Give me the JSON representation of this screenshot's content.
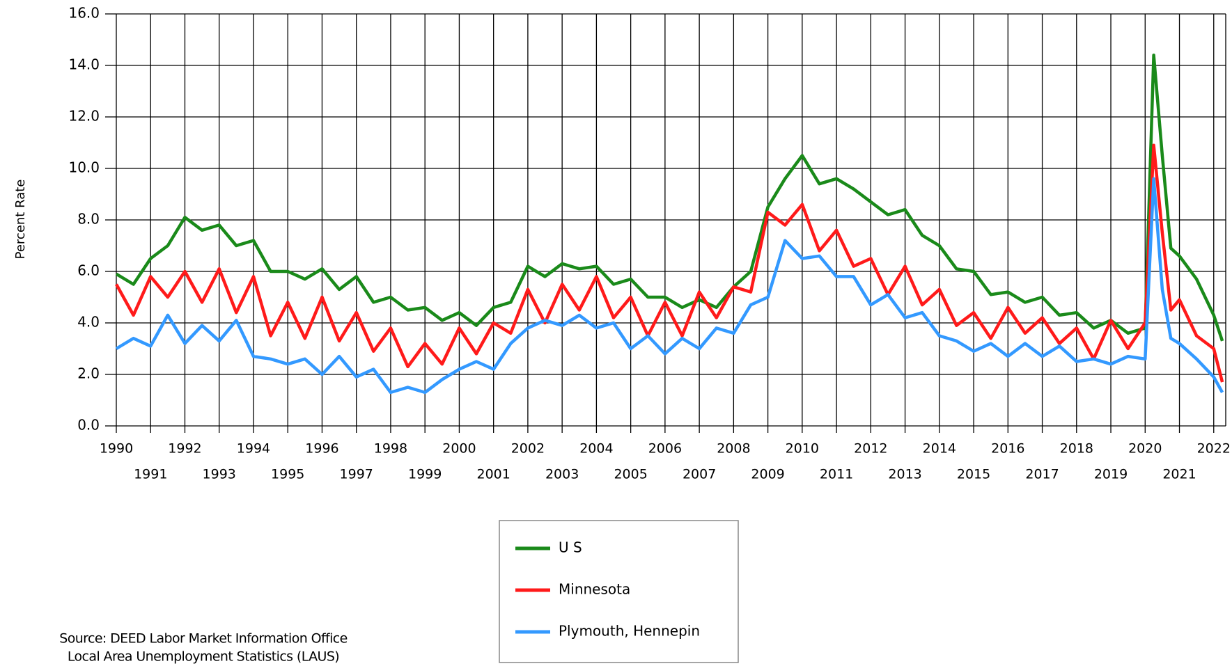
{
  "chart_data": {
    "type": "line",
    "y_label": "Percent Rate",
    "source": [
      "Source: DEED Labor Market Information Office",
      "Local Area Unemployment Statistics (LAUS)"
    ],
    "x": [
      1990,
      1990.5,
      1991,
      1991.5,
      1992,
      1992.5,
      1993,
      1993.5,
      1994,
      1994.5,
      1995,
      1995.5,
      1996,
      1996.5,
      1997,
      1997.5,
      1998,
      1998.5,
      1999,
      1999.5,
      2000,
      2000.5,
      2001,
      2001.5,
      2002,
      2002.5,
      2003,
      2003.5,
      2004,
      2004.5,
      2005,
      2005.5,
      2006,
      2006.5,
      2007,
      2007.5,
      2008,
      2008.5,
      2009,
      2009.5,
      2010,
      2010.5,
      2011,
      2011.5,
      2012,
      2012.5,
      2013,
      2013.5,
      2014,
      2014.5,
      2015,
      2015.5,
      2016,
      2016.5,
      2017,
      2017.5,
      2018,
      2018.5,
      2019,
      2019.5,
      2020,
      2020.25,
      2020.5,
      2020.75,
      2021,
      2021.5,
      2022,
      2022.25
    ],
    "series": [
      {
        "name": "U S",
        "color": "#1a8a1a",
        "values": [
          5.9,
          5.5,
          6.5,
          7.0,
          8.1,
          7.6,
          7.8,
          7.0,
          7.2,
          6.0,
          6.0,
          5.7,
          6.1,
          5.3,
          5.8,
          4.8,
          5.0,
          4.5,
          4.6,
          4.1,
          4.4,
          3.9,
          4.6,
          4.8,
          6.2,
          5.8,
          6.3,
          6.1,
          6.2,
          5.5,
          5.7,
          5.0,
          5.0,
          4.6,
          4.9,
          4.6,
          5.4,
          6.0,
          8.5,
          9.6,
          10.5,
          9.4,
          9.6,
          9.2,
          8.7,
          8.2,
          8.4,
          7.4,
          7.0,
          6.1,
          6.0,
          5.1,
          5.2,
          4.8,
          5.0,
          4.3,
          4.4,
          3.8,
          4.1,
          3.6,
          3.8,
          14.4,
          10.5,
          6.9,
          6.6,
          5.7,
          4.3,
          3.3
        ]
      },
      {
        "name": "Minnesota",
        "color": "#ff1a1a",
        "values": [
          5.5,
          4.3,
          5.8,
          5.0,
          6.0,
          4.8,
          6.1,
          4.4,
          5.8,
          3.5,
          4.8,
          3.4,
          5.0,
          3.3,
          4.4,
          2.9,
          3.8,
          2.3,
          3.2,
          2.4,
          3.8,
          2.8,
          4.0,
          3.6,
          5.3,
          4.0,
          5.5,
          4.5,
          5.8,
          4.2,
          5.0,
          3.5,
          4.8,
          3.5,
          5.2,
          4.2,
          5.4,
          5.2,
          8.3,
          7.8,
          8.6,
          6.8,
          7.6,
          6.2,
          6.5,
          5.1,
          6.2,
          4.7,
          5.3,
          3.9,
          4.4,
          3.4,
          4.6,
          3.6,
          4.2,
          3.2,
          3.8,
          2.6,
          4.1,
          3.0,
          4.0,
          10.9,
          7.5,
          4.5,
          4.9,
          3.5,
          3.0,
          1.7
        ]
      },
      {
        "name": "Plymouth, Hennepin",
        "color": "#3399ff",
        "values": [
          3.0,
          3.4,
          3.1,
          4.3,
          3.2,
          3.9,
          3.3,
          4.1,
          2.7,
          2.6,
          2.4,
          2.6,
          2.0,
          2.7,
          1.9,
          2.2,
          1.3,
          1.5,
          1.3,
          1.8,
          2.2,
          2.5,
          2.2,
          3.2,
          3.8,
          4.1,
          3.9,
          4.3,
          3.8,
          4.0,
          3.0,
          3.5,
          2.8,
          3.4,
          3.0,
          3.8,
          3.6,
          4.7,
          5.0,
          7.2,
          6.5,
          6.6,
          5.8,
          5.8,
          4.7,
          5.1,
          4.2,
          4.4,
          3.5,
          3.3,
          2.9,
          3.2,
          2.7,
          3.2,
          2.7,
          3.1,
          2.5,
          2.6,
          2.4,
          2.7,
          2.6,
          9.6,
          5.3,
          3.4,
          3.2,
          2.6,
          1.9,
          1.3
        ]
      }
    ],
    "xlim": [
      1990,
      2022.35
    ],
    "xticks": [
      1990,
      1991,
      1992,
      1993,
      1994,
      1995,
      1996,
      1997,
      1998,
      1999,
      2000,
      2001,
      2002,
      2003,
      2004,
      2005,
      2006,
      2007,
      2008,
      2009,
      2010,
      2011,
      2012,
      2013,
      2014,
      2015,
      2016,
      2017,
      2018,
      2019,
      2020,
      2021,
      2022
    ],
    "ylim": [
      0,
      16
    ],
    "yticks": [
      {
        "value": 0,
        "label": "0.0"
      },
      {
        "value": 2,
        "label": "2.0"
      },
      {
        "value": 4,
        "label": "4.0"
      },
      {
        "value": 6,
        "label": "6.0"
      },
      {
        "value": 8,
        "label": "8.0"
      },
      {
        "value": 10,
        "label": "10.0"
      },
      {
        "value": 12,
        "label": "12.0"
      },
      {
        "value": 14,
        "label": "14.0"
      },
      {
        "value": 16,
        "label": "16.0"
      }
    ],
    "grid": true
  }
}
